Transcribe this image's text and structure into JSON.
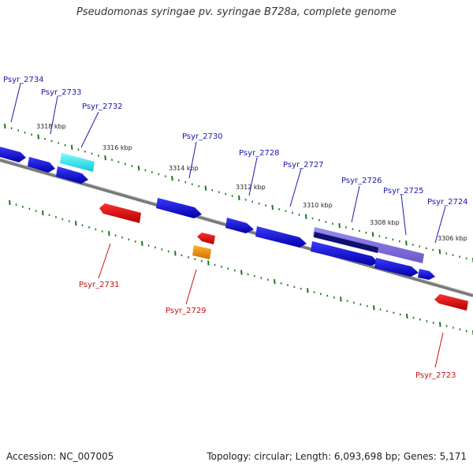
{
  "title": "Pseudomonas syringae pv. syringae B728a, complete genome",
  "footer": {
    "accession": "Accession: NC_007005",
    "summary": "Topology: circular; Length: 6,093,698 bp; Genes: 5,171"
  },
  "colors": {
    "forward": "#1010e0",
    "reverse": "#e01010",
    "cyan": "#20e0e0",
    "orange": "#f08c00",
    "purple": "#7b68d8",
    "navy": "#101070",
    "backbone": "#808080",
    "tick": "#1a7a1a",
    "label_forward": "#1a1aaa",
    "label_reverse": "#cc1111",
    "scale_text": "#222222"
  },
  "scale_labels": [
    "3318 kbp",
    "3316 kbp",
    "3314 kbp",
    "3312 kbp",
    "3310 kbp",
    "3308 kbp",
    "3306 kbp"
  ],
  "genes": [
    {
      "name": "Psyr_2734",
      "strand": "+",
      "color": "forward"
    },
    {
      "name": "Psyr_2733",
      "strand": "+",
      "color": "forward"
    },
    {
      "name": "Psyr_2732",
      "strand": "+",
      "color": "cyan"
    },
    {
      "name": "Psyr_2731",
      "strand": "-",
      "color": "reverse"
    },
    {
      "name": "Psyr_2730",
      "strand": "+",
      "color": "forward"
    },
    {
      "name": "Psyr_2729",
      "strand": "-",
      "color": "orange"
    },
    {
      "name": "Psyr_2728",
      "strand": "+",
      "color": "forward"
    },
    {
      "name": "Psyr_2727",
      "strand": "+",
      "color": "forward"
    },
    {
      "name": "Psyr_2726",
      "strand": "+",
      "color": "purple"
    },
    {
      "name": "Psyr_2725",
      "strand": "+",
      "color": "forward"
    },
    {
      "name": "Psyr_2724",
      "strand": "+",
      "color": "forward"
    },
    {
      "name": "Psyr_2723",
      "strand": "-",
      "color": "reverse"
    }
  ]
}
